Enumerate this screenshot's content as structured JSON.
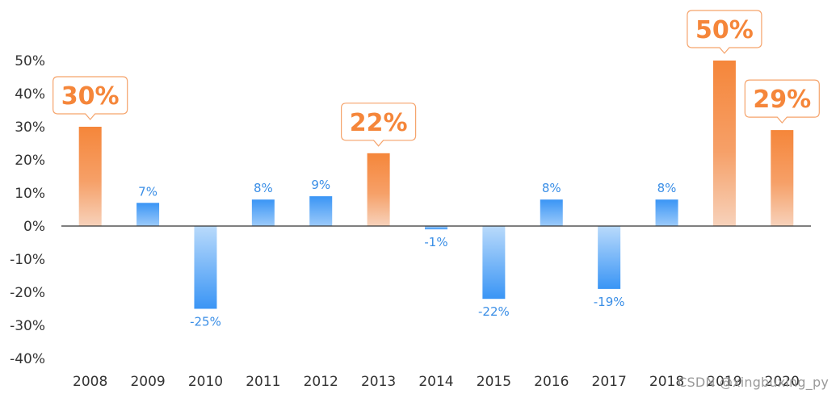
{
  "chart_data": {
    "type": "bar",
    "categories": [
      "2008",
      "2009",
      "2010",
      "2011",
      "2012",
      "2013",
      "2014",
      "2015",
      "2016",
      "2017",
      "2018",
      "2019",
      "2020"
    ],
    "values": [
      30,
      7,
      -25,
      8,
      9,
      22,
      -1,
      -22,
      8,
      -19,
      8,
      50,
      29
    ],
    "value_labels": [
      "30%",
      "7%",
      "-25%",
      "8%",
      "9%",
      "22%",
      "-1%",
      "-22%",
      "8%",
      "-19%",
      "8%",
      "50%",
      "29%"
    ],
    "highlighted": [
      true,
      false,
      false,
      false,
      false,
      true,
      false,
      false,
      false,
      false,
      false,
      true,
      true
    ],
    "ylim": [
      -40,
      50
    ],
    "yticks": [
      50,
      40,
      30,
      20,
      10,
      0,
      -10,
      -20,
      -30,
      -40
    ],
    "ytick_labels": [
      "50%",
      "40%",
      "30%",
      "20%",
      "10%",
      "0%",
      "-10%",
      "-20%",
      "-30%",
      "-40%"
    ],
    "title": "",
    "xlabel": "",
    "ylabel": "",
    "grid": false,
    "colors": {
      "highlight_top": "#f5863a",
      "highlight_bottom": "#f7d2bb",
      "normal_strong": "#3a95f5",
      "normal_light": "#b9dafb",
      "normal_label": "#3a8ee6",
      "axis": "#333333"
    }
  },
  "watermark": "CSDN @xingbuxing_py"
}
